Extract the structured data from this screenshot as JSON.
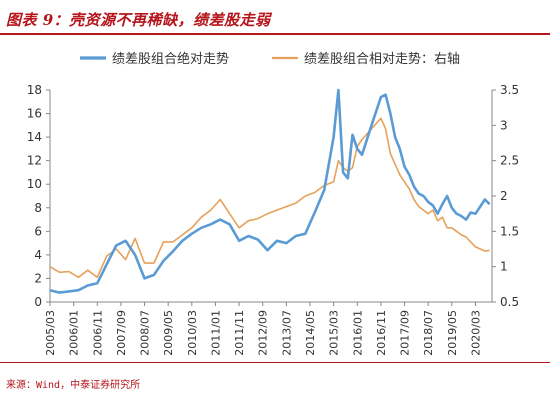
{
  "figure": {
    "title": "图表 9：壳资源不再稀缺，绩差股走弱",
    "source": "来源：Wind，中泰证券研究所"
  },
  "colors": {
    "absolute": "#5b9bd5",
    "relative": "#e6a15a",
    "accent": "#b5151b"
  },
  "chart_data": {
    "type": "line",
    "legend_position": "top",
    "grid": false,
    "x_tick_labels": [
      "2005/03",
      "2006/01",
      "2006/11",
      "2007/09",
      "2008/07",
      "2009/05",
      "2010/03",
      "2011/01",
      "2011/11",
      "2012/09",
      "2013/07",
      "2014/05",
      "2015/03",
      "2016/01",
      "2016/11",
      "2017/09",
      "2018/07",
      "2019/05",
      "2020/03"
    ],
    "x": [
      "2005/03",
      "2005/07",
      "2005/11",
      "2006/03",
      "2006/07",
      "2006/11",
      "2007/03",
      "2007/07",
      "2007/11",
      "2008/03",
      "2008/07",
      "2008/11",
      "2009/03",
      "2009/07",
      "2009/11",
      "2010/03",
      "2010/07",
      "2010/11",
      "2011/03",
      "2011/07",
      "2011/11",
      "2012/03",
      "2012/07",
      "2012/11",
      "2013/03",
      "2013/07",
      "2013/11",
      "2014/03",
      "2014/07",
      "2014/11",
      "2015/03",
      "2015/05",
      "2015/07",
      "2015/09",
      "2015/11",
      "2016/01",
      "2016/03",
      "2016/07",
      "2016/11",
      "2017/01",
      "2017/03",
      "2017/05",
      "2017/07",
      "2017/09",
      "2017/11",
      "2018/01",
      "2018/03",
      "2018/05",
      "2018/07",
      "2018/09",
      "2018/11",
      "2019/01",
      "2019/03",
      "2019/05",
      "2019/07",
      "2019/09",
      "2019/11",
      "2020/01",
      "2020/03",
      "2020/05",
      "2020/07",
      "2020/09"
    ],
    "y_left": {
      "ticks": [
        0,
        2,
        4,
        6,
        8,
        10,
        12,
        14,
        16,
        18
      ],
      "lim": [
        0,
        18
      ]
    },
    "y_right": {
      "ticks": [
        0.5,
        1,
        1.5,
        2,
        2.5,
        3,
        3.5
      ],
      "lim": [
        0.5,
        3.5
      ]
    },
    "series": [
      {
        "name": "绩差股组合绝对走势",
        "axis": "left",
        "values": [
          1.0,
          0.8,
          0.9,
          1.0,
          1.4,
          1.6,
          3.2,
          4.8,
          5.2,
          4.0,
          2.0,
          2.3,
          3.5,
          4.3,
          5.2,
          5.8,
          6.3,
          6.6,
          7.0,
          6.6,
          5.2,
          5.6,
          5.3,
          4.4,
          5.2,
          5.0,
          5.6,
          5.8,
          7.6,
          9.5,
          14.0,
          18.0,
          11.0,
          10.5,
          14.2,
          13.0,
          12.5,
          15.0,
          17.4,
          17.6,
          16.0,
          14.0,
          13.0,
          11.5,
          10.8,
          9.8,
          9.2,
          9.0,
          8.5,
          8.2,
          7.5,
          8.3,
          9.0,
          8.0,
          7.5,
          7.3,
          7.0,
          7.6,
          7.5,
          8.1,
          8.7,
          8.3
        ]
      },
      {
        "name": "绩差股组合相对走势：右轴",
        "axis": "right",
        "values": [
          1.0,
          0.92,
          0.93,
          0.85,
          0.95,
          0.85,
          1.15,
          1.25,
          1.1,
          1.4,
          1.05,
          1.05,
          1.35,
          1.35,
          1.45,
          1.55,
          1.7,
          1.8,
          1.95,
          1.75,
          1.55,
          1.65,
          1.68,
          1.75,
          1.8,
          1.85,
          1.9,
          2.0,
          2.05,
          2.15,
          2.2,
          2.5,
          2.4,
          2.35,
          2.4,
          2.7,
          2.8,
          2.95,
          3.1,
          2.95,
          2.6,
          2.45,
          2.3,
          2.2,
          2.1,
          1.95,
          1.85,
          1.8,
          1.75,
          1.8,
          1.65,
          1.7,
          1.55,
          1.55,
          1.5,
          1.45,
          1.42,
          1.35,
          1.28,
          1.25,
          1.22,
          1.23
        ]
      }
    ]
  }
}
